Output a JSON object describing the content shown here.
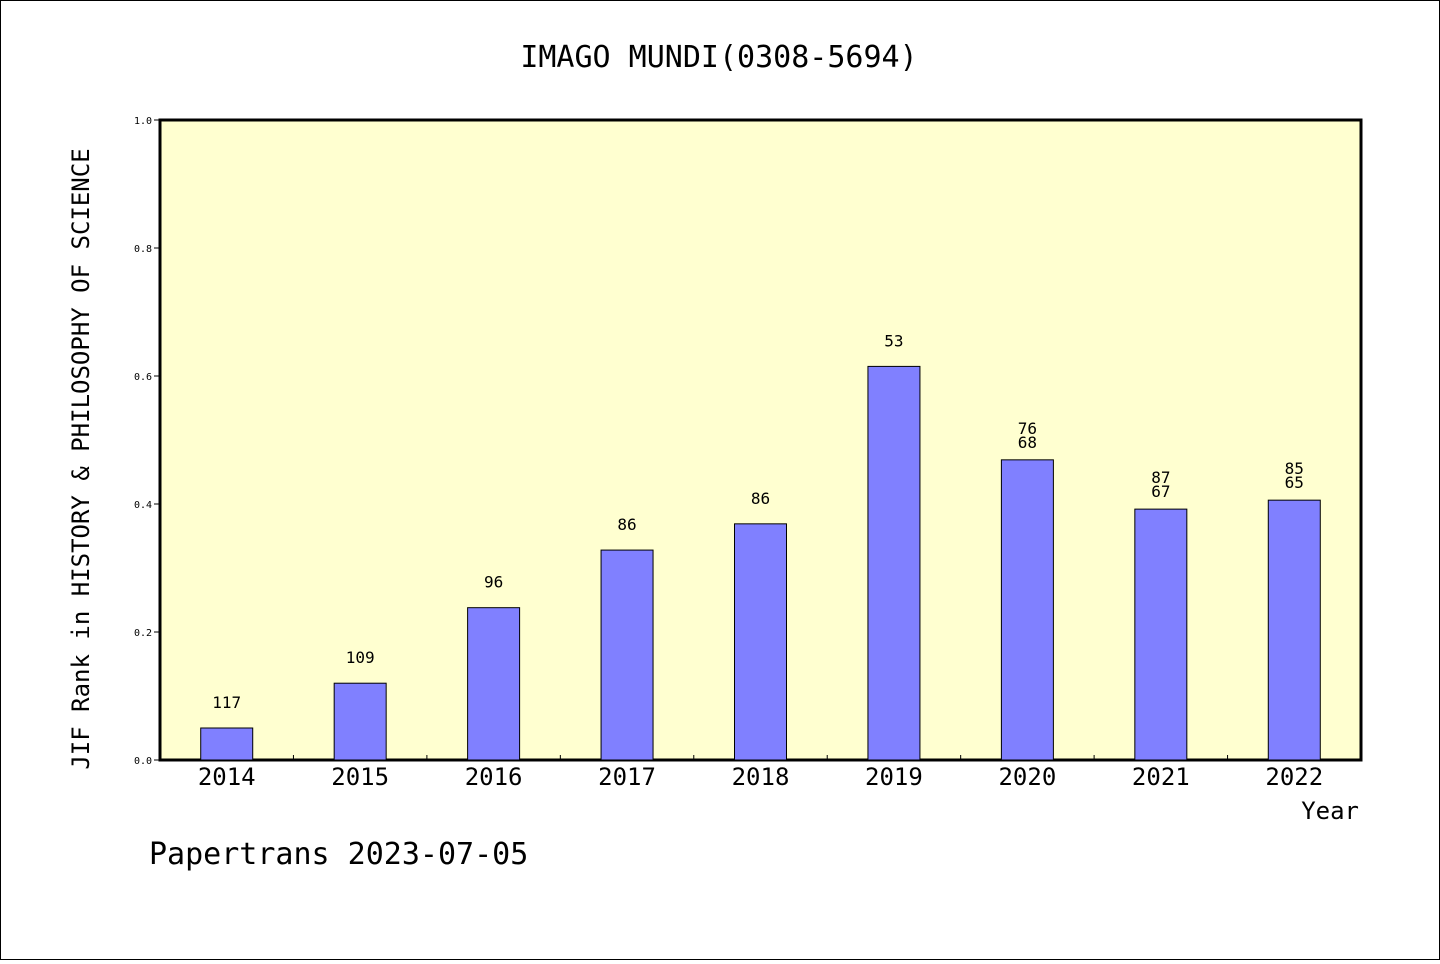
{
  "chart_data": {
    "type": "bar",
    "title": "IMAGO MUNDI(0308-5694)",
    "xlabel": "Year",
    "ylabel": "JIF Rank in HISTORY & PHILOSOPHY OF SCIENCE",
    "ylim": [
      0,
      1.0
    ],
    "yticks": [
      "0.0",
      "0.2",
      "0.4",
      "0.6",
      "0.8",
      "1.0"
    ],
    "categories": [
      "2014",
      "2015",
      "2016",
      "2017",
      "2018",
      "2019",
      "2020",
      "2021",
      "2022"
    ],
    "values": [
      0.05,
      0.12,
      0.238,
      0.328,
      0.369,
      0.615,
      0.469,
      0.392,
      0.406
    ],
    "labels": [
      [
        "117"
      ],
      [
        "109"
      ],
      [
        "96"
      ],
      [
        "86"
      ],
      [
        "86"
      ],
      [
        "53"
      ],
      [
        "76",
        "68"
      ],
      [
        "87",
        "67"
      ],
      [
        "85",
        "65"
      ]
    ],
    "bar_color": "#8080ff",
    "plot_background": "#ffffd0",
    "grid": false
  },
  "footer": "Papertrans 2023-07-05"
}
